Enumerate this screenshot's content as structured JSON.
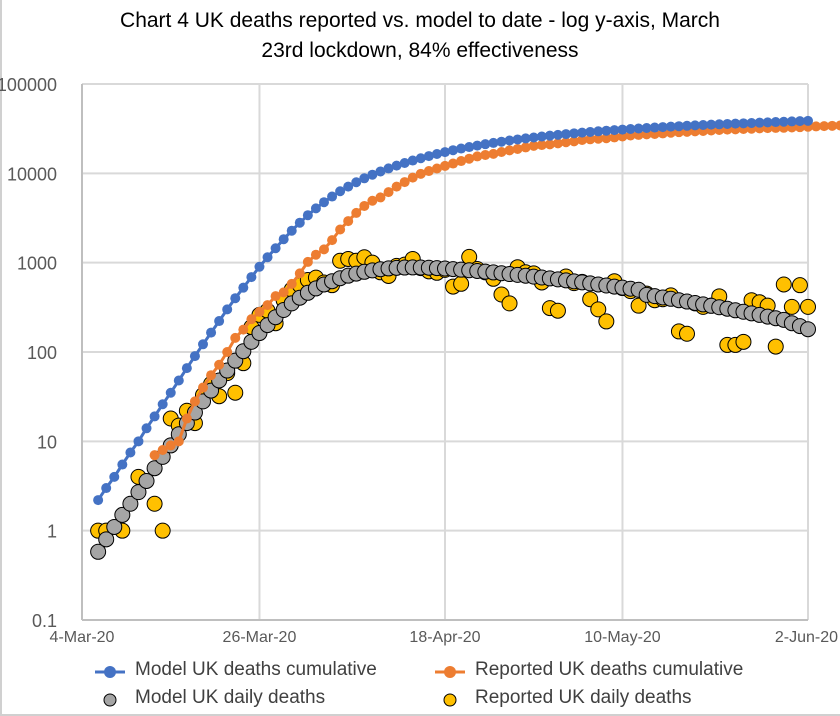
{
  "chart_data": {
    "type": "scatter",
    "title": "Chart 4 UK deaths reported vs. model to date - log y-axis, March 23rd lockdown, 84% effectiveness",
    "title_lines": [
      "Chart 4 UK deaths reported vs. model to date - log y-axis, March",
      "23rd lockdown, 84% effectiveness"
    ],
    "xlabel": "",
    "ylabel": "",
    "yscale": "log",
    "ylim": [
      0.1,
      100000
    ],
    "y_ticks": [
      "100000",
      "10000",
      "1000",
      "100",
      "10",
      "1",
      "0.1"
    ],
    "y_tick_values": [
      100000,
      10000,
      1000,
      100,
      10,
      1,
      0.1
    ],
    "x_ticks": [
      "4-Mar-20",
      "26-Mar-20",
      "18-Apr-20",
      "10-May-20",
      "2-Jun-20"
    ],
    "x_tick_days": [
      0,
      22,
      45,
      67,
      90
    ],
    "x_origin_date": "4-Mar-20",
    "xlim_days": [
      0,
      90
    ],
    "grid": true,
    "legend_position": "bottom",
    "series": [
      {
        "name": "Model UK deaths cumulative",
        "color": "#4472c4",
        "style": "line-marker",
        "start_day": 2,
        "values": [
          2.2,
          3,
          4,
          5.5,
          7.5,
          10,
          14,
          19,
          26,
          35,
          48,
          66,
          90,
          122,
          165,
          222,
          300,
          400,
          525,
          690,
          900,
          1150,
          1450,
          1830,
          2280,
          2800,
          3400,
          4050,
          4750,
          5500,
          6300,
          7100,
          7950,
          8800,
          9650,
          10500,
          11350,
          12200,
          13050,
          13900,
          14750,
          15600,
          16450,
          17300,
          18150,
          18950,
          19700,
          20450,
          21200,
          21900,
          22600,
          23300,
          23950,
          24600,
          25200,
          25800,
          26400,
          26950,
          27500,
          28050,
          28550,
          29050,
          29550,
          30000,
          30450,
          30900,
          31350,
          31750,
          32150,
          32550,
          32950,
          33350,
          33700,
          34050,
          34400,
          34750,
          35100,
          35400,
          35700,
          36000,
          36300,
          36600,
          36900,
          37200,
          37500,
          37800,
          38100,
          38400,
          38700
        ]
      },
      {
        "name": "Reported UK deaths cumulative",
        "color": "#ed7d31",
        "style": "line-marker",
        "start_day": 9,
        "values": [
          7,
          8,
          9,
          10,
          18,
          28,
          40,
          55,
          72,
          100,
          144,
          178,
          233,
          281,
          335,
          422,
          465,
          578,
          759,
          1019,
          1228,
          1408,
          1789,
          2352,
          2921,
          3605,
          4313,
          4934,
          5373,
          6159,
          7097,
          7978,
          8958,
          9875,
          10612,
          11329,
          12107,
          12868,
          13729,
          14576,
          15464,
          16060,
          16509,
          17337,
          18100,
          18738,
          19506,
          20319,
          20732,
          21092,
          21678,
          22272,
          22792,
          23635,
          24055,
          24393,
          24734,
          25245,
          25875,
          26510,
          26913,
          27284,
          27585,
          27967,
          28468,
          28881,
          29138,
          29491,
          29819,
          30203,
          30585,
          30847,
          31070,
          31346,
          31590,
          31848,
          32107,
          32251,
          32334,
          32594,
          32854,
          33184,
          33518,
          33780,
          34007,
          34340
        ]
      },
      {
        "name": "Model UK daily deaths",
        "color": "#a5a5a5",
        "style": "marker",
        "start_day": 2,
        "values": [
          0.58,
          0.8,
          1.1,
          1.5,
          2.0,
          2.7,
          3.6,
          5,
          6.7,
          9,
          12,
          16,
          21,
          28,
          37,
          48,
          62,
          80,
          102,
          130,
          163,
          200,
          245,
          295,
          350,
          405,
          460,
          515,
          570,
          620,
          670,
          715,
          755,
          790,
          820,
          845,
          862,
          875,
          882,
          885,
          883,
          878,
          870,
          860,
          848,
          835,
          822,
          808,
          793,
          778,
          762,
          746,
          730,
          714,
          698,
          682,
          666,
          650,
          634,
          618,
          602,
          586,
          570,
          555,
          540,
          525,
          511,
          497,
          436,
          422,
          408,
          394,
          380,
          367,
          354,
          341,
          329,
          317,
          305,
          293,
          282,
          271,
          260,
          249,
          239,
          229,
          210,
          195,
          180
        ]
      },
      {
        "name": "Reported UK daily deaths",
        "color": "#ffc000",
        "style": "marker",
        "days": [
          2,
          3,
          5,
          7,
          9,
          10,
          11,
          12,
          13,
          14,
          15,
          16,
          17,
          18,
          19,
          20,
          21,
          22,
          23,
          24,
          25,
          26,
          27,
          28,
          29,
          30,
          31,
          32,
          33,
          34,
          35,
          36,
          37,
          38,
          39,
          40,
          41,
          42,
          43,
          44,
          45,
          46,
          47,
          48,
          49,
          50,
          51,
          52,
          53,
          54,
          55,
          56,
          57,
          58,
          59,
          60,
          61,
          62,
          63,
          64,
          65,
          66,
          67,
          68,
          69,
          70,
          71,
          72,
          73,
          74,
          75,
          76,
          77,
          78,
          79,
          80,
          81,
          82,
          83,
          84,
          85,
          86,
          87,
          88,
          89,
          90
        ],
        "values": [
          1,
          1,
          1,
          4,
          2,
          1,
          18,
          15,
          22,
          16,
          33,
          44,
          32,
          58,
          35,
          75,
          190,
          260,
          290,
          210,
          380,
          500,
          560,
          640,
          680,
          600,
          560,
          1050,
          1100,
          1050,
          1150,
          1000,
          780,
          710,
          920,
          950,
          1100,
          870,
          800,
          770,
          830,
          540,
          580,
          1160,
          850,
          780,
          660,
          440,
          350,
          890,
          780,
          760,
          600,
          310,
          290,
          700,
          590,
          610,
          390,
          300,
          220,
          620,
          520,
          480,
          330,
          450,
          380,
          390,
          430,
          170,
          160,
          350,
          320,
          330,
          420,
          120,
          120,
          130,
          380,
          360,
          330,
          115,
          570,
          320,
          560,
          320
        ]
      }
    ]
  }
}
